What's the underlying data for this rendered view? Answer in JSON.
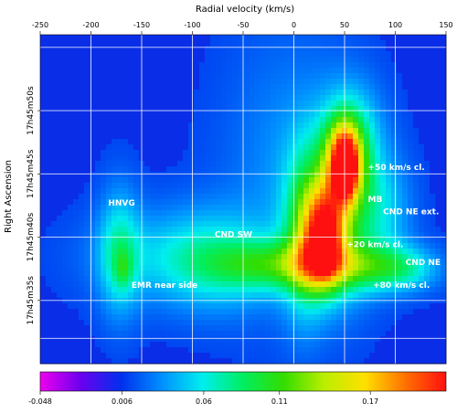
{
  "chart_data": {
    "type": "heatmap",
    "title": "",
    "xlabel": "Radial velocity (km/s)",
    "ylabel": "Right Ascension",
    "x_ticks": [
      "-250",
      "-200",
      "-150",
      "-100",
      "-50",
      "0",
      "50",
      "100",
      "150"
    ],
    "x_tick_values": [
      -250,
      -200,
      -150,
      -100,
      -50,
      0,
      50,
      100,
      150
    ],
    "xlim": [
      -250,
      150
    ],
    "y_ticks": [
      "17h45m50s",
      "17h45m45s",
      "17h45m40s",
      "17h45m35s"
    ],
    "y_tick_values": [
      50,
      45,
      40,
      35
    ],
    "ylim": [
      30,
      56
    ],
    "grid": true,
    "colorbar": {
      "ticks": [
        "-0.048",
        "0.006",
        "0.06",
        "0.11",
        "0.17"
      ],
      "tick_values": [
        -0.048,
        0.006,
        0.06,
        0.11,
        0.17
      ],
      "range": [
        -0.048,
        0.22
      ],
      "colormap": [
        "#ee00ee",
        "#6a00ee",
        "#0030ee",
        "#0090ff",
        "#00eeee",
        "#00ee60",
        "#33dd00",
        "#bbee00",
        "#ffe000",
        "#ff7000",
        "#ff1010"
      ]
    },
    "background_color": "#0a2ee8",
    "annotations": [
      {
        "text": "HNVG",
        "x": -183,
        "y": 42.5
      },
      {
        "text": "CND SW",
        "x": -78,
        "y": 40.0
      },
      {
        "text": "EMR near side",
        "x": -160,
        "y": 36.0
      },
      {
        "text": "+50 km/s cl.",
        "x": 73,
        "y": 45.3
      },
      {
        "text": "MB",
        "x": 73,
        "y": 42.8
      },
      {
        "text": "CND NE ext.",
        "x": 88,
        "y": 41.8
      },
      {
        "text": "+20 km/s cl.",
        "x": 52,
        "y": 39.2
      },
      {
        "text": "CND NE",
        "x": 110,
        "y": 37.8
      },
      {
        "text": "+80 km/s cl.",
        "x": 78,
        "y": 36.0
      }
    ],
    "emission_blobs": [
      {
        "v": 50,
        "ra": 46.0,
        "sv": 12,
        "sra": 2.2,
        "amp": 0.16
      },
      {
        "v": 52,
        "ra": 45.2,
        "sv": 6,
        "sra": 1.3,
        "amp": 0.06
      },
      {
        "v": 30,
        "ra": 40.0,
        "sv": 14,
        "sra": 2.6,
        "amp": 0.14
      },
      {
        "v": 32,
        "ra": 39.2,
        "sv": 5,
        "sra": 1.0,
        "amp": 0.07
      },
      {
        "v": 45,
        "ra": 42.5,
        "sv": 25,
        "sra": 4.5,
        "amp": 0.08
      },
      {
        "v": 10,
        "ra": 40.0,
        "sv": 15,
        "sra": 4.5,
        "amp": 0.06
      },
      {
        "v": -15,
        "ra": 37.8,
        "sv": 45,
        "sra": 1.4,
        "amp": 0.07
      },
      {
        "v": 70,
        "ra": 37.6,
        "sv": 40,
        "sra": 1.3,
        "amp": 0.06
      },
      {
        "v": 110,
        "ra": 37.5,
        "sv": 22,
        "sra": 1.2,
        "amp": 0.03
      },
      {
        "v": -80,
        "ra": 38.2,
        "sv": 40,
        "sra": 2.8,
        "amp": 0.045
      },
      {
        "v": -172,
        "ra": 38.8,
        "sv": 14,
        "sra": 3.5,
        "amp": 0.05
      },
      {
        "v": -168,
        "ra": 37.5,
        "sv": 6,
        "sra": 1.0,
        "amp": 0.03
      },
      {
        "v": -140,
        "ra": 38.5,
        "sv": 50,
        "sra": 2.5,
        "amp": 0.025
      },
      {
        "v": -5,
        "ra": 45.5,
        "sv": 45,
        "sra": 7.5,
        "amp": 0.022
      },
      {
        "v": 60,
        "ra": 48.0,
        "sv": 20,
        "sra": 3.0,
        "amp": 0.035
      },
      {
        "v": 90,
        "ra": 42.0,
        "sv": 20,
        "sra": 3.0,
        "amp": 0.03
      }
    ]
  }
}
